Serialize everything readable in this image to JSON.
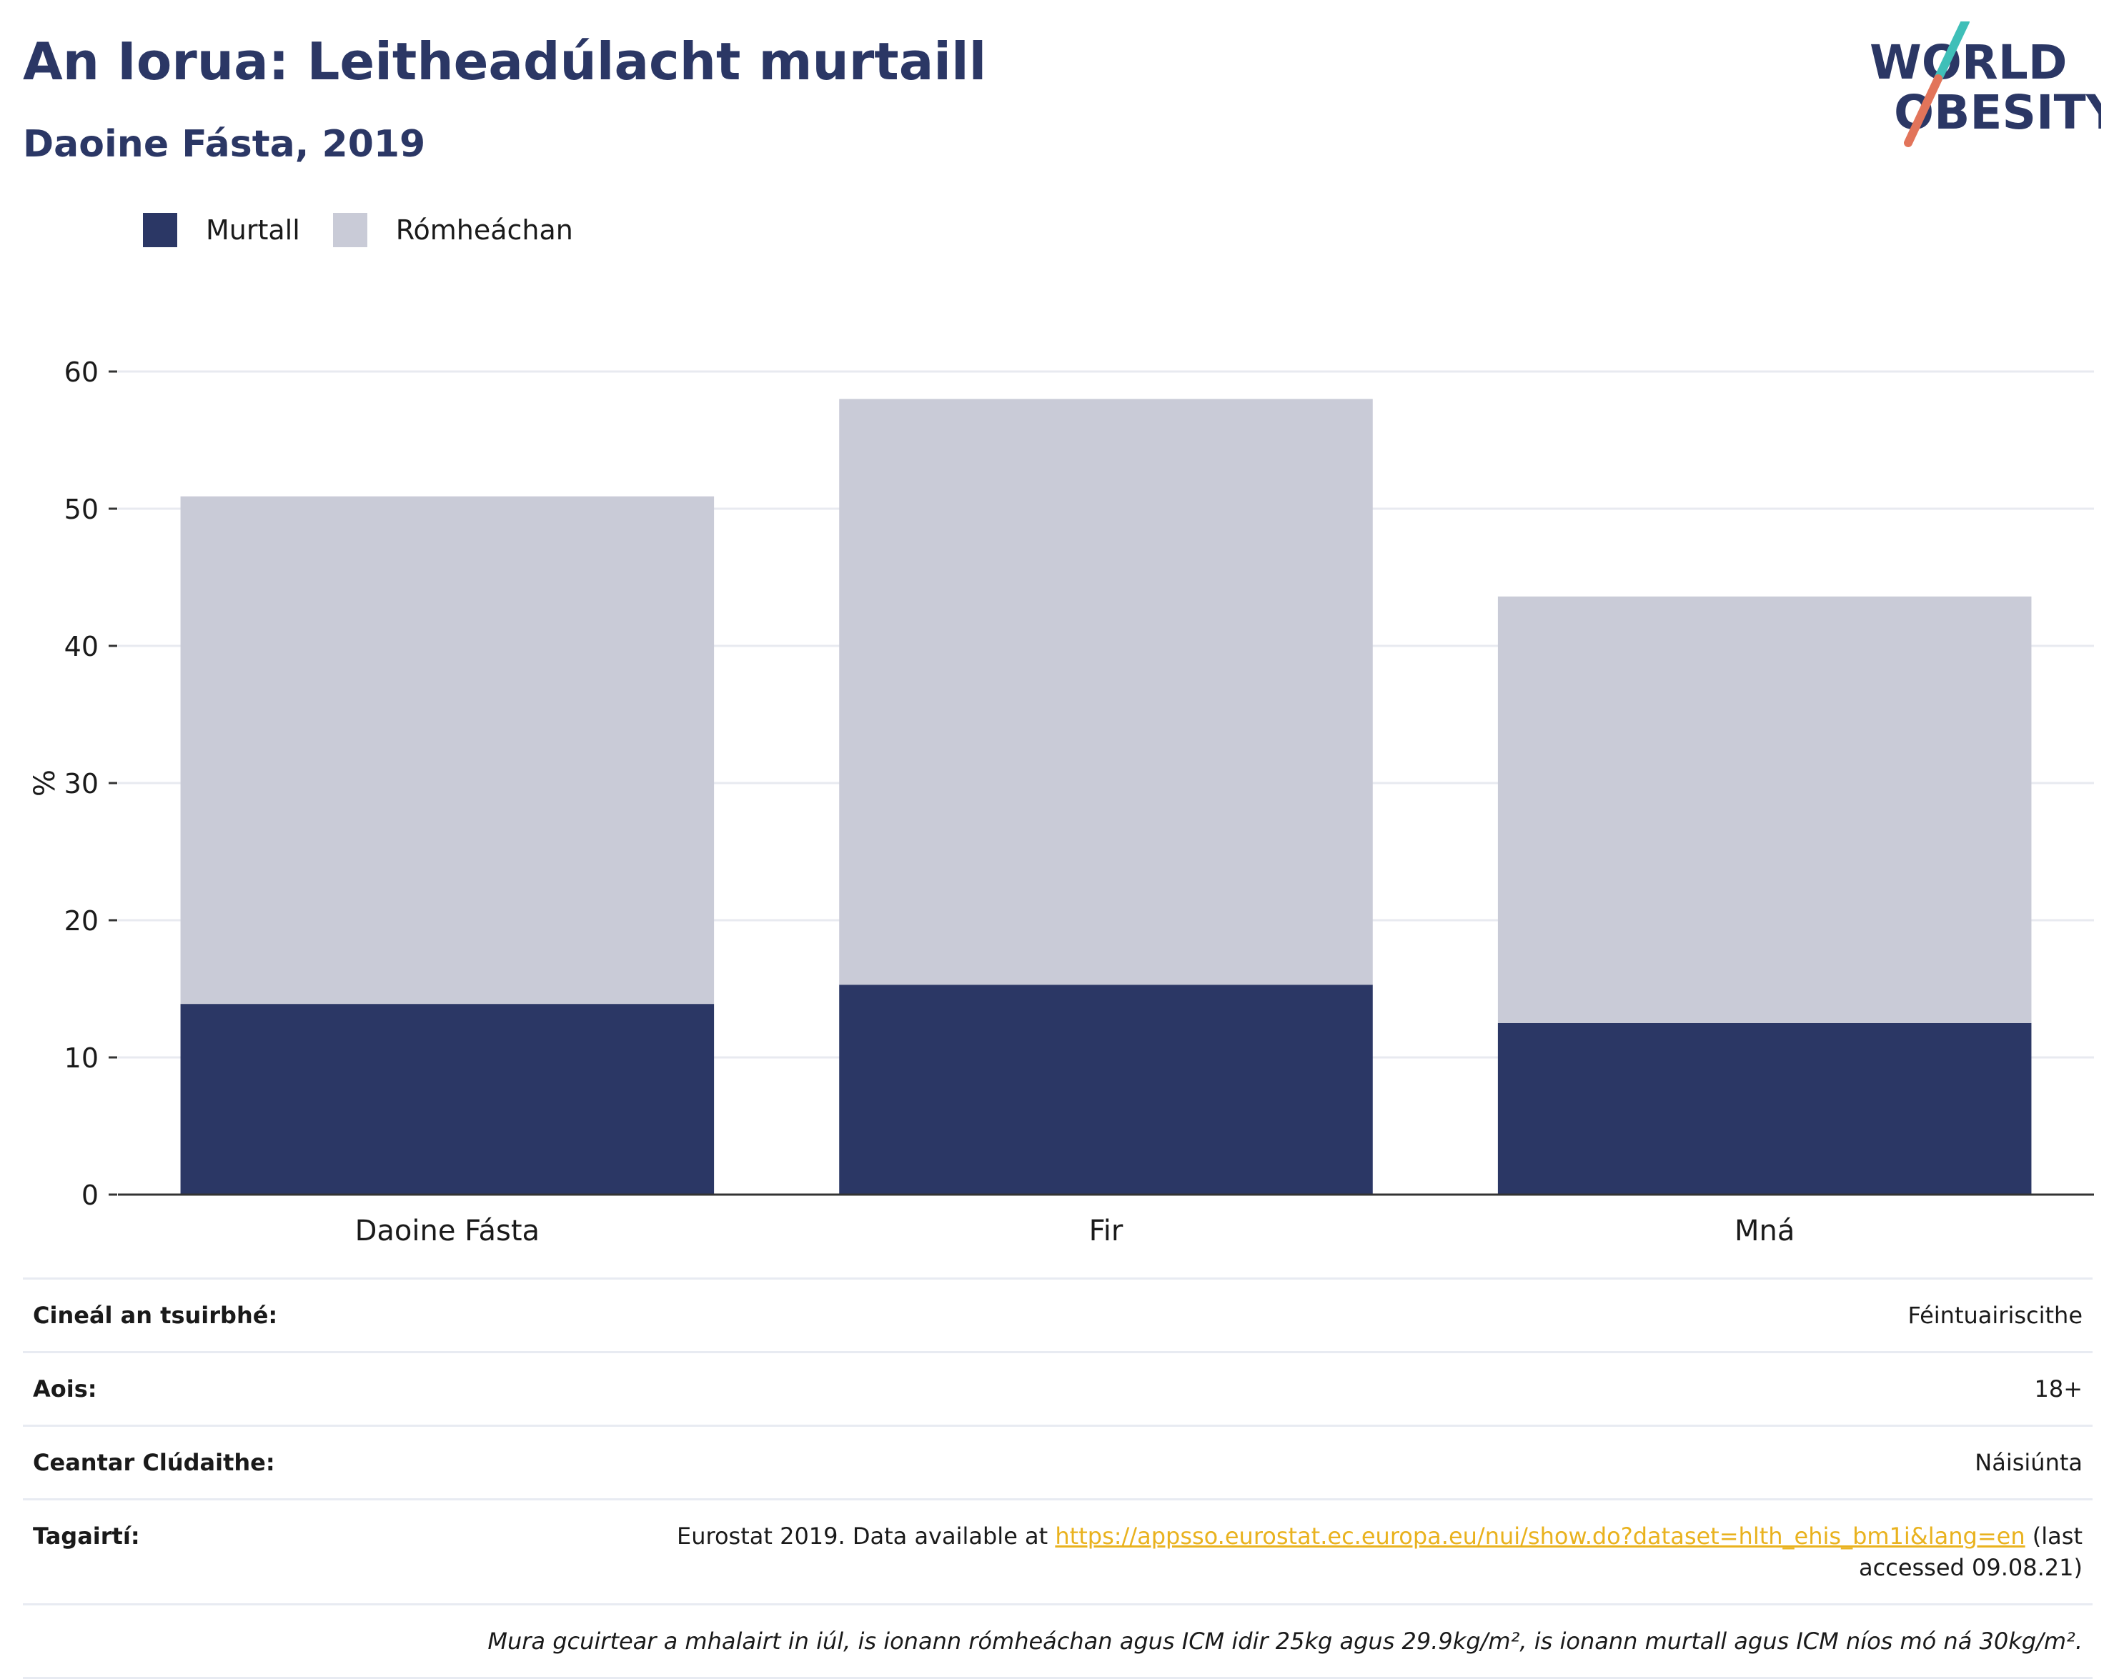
{
  "header": {
    "title": "An Iorua: Leitheadúlacht murtaill",
    "subtitle": "Daoine Fásta, 2019"
  },
  "logo": {
    "line1": "WORLD",
    "line2": "OBESITY",
    "colors": {
      "text": "#2b3765",
      "slash_top": "#3fbfb8",
      "slash_bottom": "#e2745a"
    }
  },
  "colors": {
    "obese": "#2b3765",
    "overweight": "#c9cbd7",
    "grid": "#e8eaf0",
    "axis": "#333333"
  },
  "chart_data": {
    "type": "bar",
    "stacked": true,
    "categories": [
      "Daoine Fásta",
      "Fir",
      "Mná"
    ],
    "series": [
      {
        "name": "Murtall",
        "values": [
          13.9,
          15.3,
          12.5
        ]
      },
      {
        "name": "Rómheáchan",
        "values": [
          37.0,
          42.7,
          31.1
        ]
      }
    ],
    "ylabel": "%",
    "ylim": [
      0,
      60
    ],
    "yticks": [
      "0",
      "10",
      "20",
      "30",
      "40",
      "50",
      "60"
    ],
    "grid": true,
    "legend_position": "top-left"
  },
  "info": {
    "survey_type_label": "Cineál an tsuirbhé:",
    "survey_type_value": "Féintuairiscithe",
    "age_label": "Aois:",
    "age_value": "18+",
    "area_label": "Ceantar Clúdaithe:",
    "area_value": "Náisiúnta",
    "refs_label": "Tagairtí:",
    "refs_prefix": "Eurostat 2019. Data available at ",
    "refs_link": "https://appsso.eurostat.ec.europa.eu/nui/show.do?dataset=hlth_ehis_bm1i&lang=en",
    "refs_suffix": " (last accessed 09.08.21)",
    "note": "Mura gcuirtear a mhalairt in iúl, is ionann rómheáchan agus ICM idir 25kg agus 29.9kg/m², is ionann murtall agus ICM níos mó ná 30kg/m²."
  }
}
